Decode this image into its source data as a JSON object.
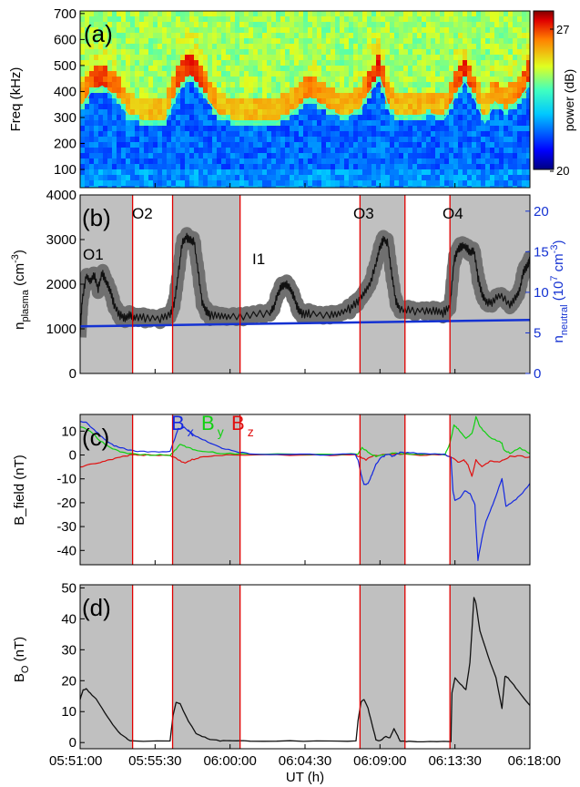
{
  "colors": {
    "shade": "#c0c0c0",
    "event_line": "#e00000",
    "bx": "#1428e0",
    "by": "#10d010",
    "bz": "#e01010",
    "density": "#111111",
    "density_band": "#707070",
    "neutral": "#1432d2",
    "right_axis": "#1432d2"
  },
  "shaded_intervals_h": [
    [
      5.85,
      5.9025
    ],
    [
      5.9425,
      6.01
    ],
    [
      6.13,
      6.175
    ],
    [
      6.22,
      6.3
    ]
  ],
  "event_lines_h": [
    5.9025,
    5.9425,
    6.01,
    6.13,
    6.175,
    6.22
  ],
  "chart_data": [
    {
      "panel": "a",
      "type": "heatmap",
      "panel_label": "(a)",
      "ylabel": "Freq (kHz)",
      "xlim_h": [
        5.85,
        6.3
      ],
      "ylim": [
        30,
        710
      ],
      "yticks": [
        "100",
        "200",
        "300",
        "400",
        "500",
        "600",
        "700"
      ],
      "colorbar": {
        "label": "power (dB)",
        "min_label": "20",
        "max_label": "27",
        "range": [
          20,
          27
        ]
      },
      "plasma_line_khz": {
        "x": [
          5.85,
          5.86,
          5.872,
          5.885,
          5.9,
          5.915,
          5.935,
          5.948,
          5.96,
          5.975,
          5.99,
          6.005,
          6.025,
          6.045,
          6.06,
          6.08,
          6.1,
          6.115,
          6.13,
          6.14,
          6.15,
          6.16,
          6.17,
          6.185,
          6.2,
          6.215,
          6.225,
          6.235,
          6.245,
          6.255,
          6.265,
          6.275,
          6.29,
          6.3
        ],
        "y": [
          330,
          395,
          420,
          380,
          300,
          285,
          282,
          400,
          460,
          380,
          300,
          285,
          282,
          280,
          310,
          375,
          325,
          300,
          330,
          400,
          450,
          320,
          300,
          305,
          315,
          300,
          380,
          440,
          370,
          280,
          360,
          320,
          370,
          430
        ]
      }
    },
    {
      "panel": "b",
      "type": "line",
      "panel_label": "(b)",
      "ylabel": "n_plasma (cm^-3)",
      "ylabel_main": "n",
      "ylabel_sub": "plasma",
      "ylabel_tail": " (cm",
      "ylabel_sup": "-3",
      "ylabel_close": ")",
      "ylim": [
        0,
        4000
      ],
      "yticks": [
        "0",
        "1000",
        "2000",
        "3000",
        "4000"
      ],
      "right_ylabel": "n_neutral (10^7 cm^-3)",
      "right_ylabel_main": "n",
      "right_ylabel_sub": "neutral",
      "right_ylabel_tail": " (10",
      "right_ylabel_sup1": "7",
      "right_ylabel_mid": " cm",
      "right_ylabel_sup2": "-3",
      "right_ylabel_close": ")",
      "right_ylim": [
        0,
        22
      ],
      "right_yticks": [
        "0",
        "5",
        "10",
        "15",
        "20"
      ],
      "annotations": [
        "O1",
        "O2",
        "I1",
        "O3",
        "O4"
      ],
      "series": [
        {
          "name": "n_plasma",
          "x": [
            5.85,
            5.852,
            5.856,
            5.86,
            5.864,
            5.868,
            5.872,
            5.876,
            5.88,
            5.884,
            5.89,
            5.895,
            5.9,
            5.905,
            5.915,
            5.93,
            5.94,
            5.944,
            5.948,
            5.952,
            5.956,
            5.96,
            5.964,
            5.968,
            5.972,
            5.976,
            5.98,
            5.99,
            6.0,
            6.02,
            6.04,
            6.044,
            6.048,
            6.052,
            6.056,
            6.06,
            6.064,
            6.068,
            6.072,
            6.08,
            6.1,
            6.11,
            6.12,
            6.128,
            6.134,
            6.14,
            6.146,
            6.15,
            6.154,
            6.158,
            6.162,
            6.166,
            6.17,
            6.18,
            6.195,
            6.205,
            6.213,
            6.22,
            6.224,
            6.228,
            6.232,
            6.236,
            6.24,
            6.244,
            6.248,
            6.252,
            6.256,
            6.262,
            6.27,
            6.28,
            6.286,
            6.29,
            6.294,
            6.298,
            6.3
          ],
          "y": [
            900,
            1600,
            2200,
            2050,
            2200,
            1900,
            2250,
            2050,
            1850,
            1550,
            1300,
            1250,
            1300,
            1250,
            1250,
            1230,
            1300,
            1550,
            2200,
            2900,
            3050,
            3000,
            2950,
            2300,
            1600,
            1400,
            1300,
            1300,
            1270,
            1300,
            1350,
            1500,
            1800,
            1950,
            2000,
            1900,
            1700,
            1450,
            1350,
            1330,
            1330,
            1350,
            1450,
            1600,
            1800,
            2000,
            2450,
            2850,
            3000,
            2900,
            2200,
            1600,
            1450,
            1400,
            1420,
            1380,
            1360,
            1500,
            2500,
            2800,
            2850,
            2850,
            2700,
            2750,
            2150,
            1800,
            1600,
            1600,
            1750,
            1550,
            1700,
            1900,
            2300,
            2450,
            2550
          ]
        },
        {
          "name": "n_neutral",
          "axis": "right",
          "x": [
            5.85,
            6.3
          ],
          "y": [
            5.8,
            6.6
          ]
        }
      ]
    },
    {
      "panel": "c",
      "type": "line",
      "panel_label": "(c)",
      "ylabel": "B_field (nT)",
      "ylim": [
        -46,
        17
      ],
      "yticks": [
        "-40",
        "-30",
        "-20",
        "-10",
        "0",
        "10"
      ],
      "legend": [
        {
          "main": "B",
          "sub": "x"
        },
        {
          "main": "B",
          "sub": "y"
        },
        {
          "main": "B",
          "sub": "z"
        }
      ],
      "series": [
        {
          "name": "Bx",
          "x": [
            5.85,
            5.855,
            5.86,
            5.868,
            5.876,
            5.884,
            5.892,
            5.9,
            5.91,
            5.925,
            5.94,
            5.944,
            5.948,
            5.954,
            5.962,
            5.97,
            5.98,
            5.992,
            6.005,
            6.02,
            6.06,
            6.1,
            6.125,
            6.128,
            6.131,
            6.134,
            6.138,
            6.142,
            6.146,
            6.15,
            6.154,
            6.158,
            6.162,
            6.165,
            6.17,
            6.18,
            6.195,
            6.215,
            6.221,
            6.223,
            6.225,
            6.23,
            6.235,
            6.24,
            6.245,
            6.246,
            6.248,
            6.252,
            6.256,
            6.26,
            6.266,
            6.272,
            6.276,
            6.282,
            6.29,
            6.3
          ],
          "y": [
            14,
            14,
            12,
            9,
            6,
            4,
            3,
            2,
            1.5,
            1.2,
            1.5,
            6,
            11,
            11.5,
            9,
            7,
            5,
            3,
            1.5,
            0.5,
            0.2,
            0.2,
            0.3,
            -2,
            -8,
            -12.5,
            -12,
            -8,
            -4,
            -1.5,
            -0.5,
            0.5,
            -0.5,
            0,
            1,
            1,
            0.5,
            0.2,
            -1,
            -15,
            -19,
            -18,
            -15,
            -16,
            -21,
            -30,
            -44,
            -35,
            -28,
            -24,
            -17,
            -10,
            -21.5,
            -20,
            -17,
            -12
          ]
        },
        {
          "name": "By",
          "x": [
            5.85,
            5.86,
            5.87,
            5.88,
            5.89,
            5.9,
            5.92,
            5.94,
            5.946,
            5.95,
            5.956,
            5.965,
            5.975,
            5.99,
            6.01,
            6.06,
            6.1,
            6.128,
            6.132,
            6.136,
            6.14,
            6.146,
            6.156,
            6.164,
            6.17,
            6.18,
            6.195,
            6.215,
            6.22,
            6.224,
            6.228,
            6.236,
            6.242,
            6.245,
            6.246,
            6.25,
            6.256,
            6.262,
            6.268,
            6.272,
            6.274,
            6.28,
            6.29,
            6.3
          ],
          "y": [
            12,
            10,
            6,
            3,
            1.5,
            0.5,
            0,
            0,
            2.5,
            4.5,
            3.5,
            2,
            1.5,
            0.8,
            0.4,
            0.3,
            0.3,
            0.5,
            3,
            2,
            0.5,
            -0.5,
            0.3,
            1,
            0.5,
            0.3,
            0.2,
            0.2,
            5,
            12.5,
            11,
            7,
            9,
            14,
            16,
            12,
            9,
            7,
            6,
            5,
            2,
            0.8,
            3,
            0.5
          ]
        },
        {
          "name": "Bz",
          "x": [
            5.85,
            5.86,
            5.87,
            5.88,
            5.89,
            5.9,
            5.91,
            5.925,
            5.94,
            5.948,
            5.955,
            5.962,
            5.97,
            5.985,
            6.0,
            6.06,
            6.1,
            6.126,
            6.131,
            6.136,
            6.142,
            6.15,
            6.16,
            6.17,
            6.19,
            6.215,
            6.222,
            6.228,
            6.234,
            6.238,
            6.242,
            6.246,
            6.252,
            6.26,
            6.268,
            6.274,
            6.28,
            6.29,
            6.3
          ],
          "y": [
            -5,
            -4,
            -3,
            -2,
            -1,
            0,
            0,
            0,
            0,
            -2,
            -3.5,
            -2,
            -1,
            -0.5,
            0,
            0,
            0,
            0,
            -1,
            -2,
            -0.5,
            0,
            0.5,
            0.3,
            0,
            0,
            -1,
            -3,
            -2,
            -4,
            -9,
            -2,
            -5,
            -2.5,
            -3,
            -2,
            -0.5,
            -0.5,
            -1
          ]
        }
      ]
    },
    {
      "panel": "d",
      "type": "line",
      "panel_label": "(d)",
      "ylabel": "B_O (nT)",
      "ylabel_main": "B",
      "ylabel_sub": "O",
      "ylabel_tail": " (nT)",
      "ylim": [
        -2,
        51
      ],
      "yticks": [
        "0",
        "10",
        "20",
        "30",
        "40",
        "50"
      ],
      "xlabel": "UT (h)",
      "xticks_h": [
        5.85,
        5.925,
        6.0,
        6.075,
        6.15,
        6.225,
        6.3
      ],
      "xticks": [
        "05:51:00",
        "05:55:30",
        "06:00:00",
        "06:04:30",
        "06:09:00",
        "06:13:30",
        "06:18:00"
      ],
      "series": [
        {
          "name": "B_O",
          "x": [
            5.85,
            5.853,
            5.856,
            5.86,
            5.866,
            5.872,
            5.88,
            5.888,
            5.896,
            5.9,
            5.94,
            5.943,
            5.946,
            5.95,
            5.955,
            5.96,
            5.966,
            5.972,
            5.98,
            5.99,
            6.0,
            6.02,
            6.06,
            6.1,
            6.126,
            6.128,
            6.131,
            6.134,
            6.138,
            6.142,
            6.146,
            6.15,
            6.156,
            6.16,
            6.164,
            6.168,
            6.17,
            6.175,
            6.18,
            6.2,
            6.221,
            6.222,
            6.225,
            6.23,
            6.236,
            6.24,
            6.244,
            6.246,
            6.25,
            6.258,
            6.266,
            6.272,
            6.275,
            6.278,
            6.284,
            6.29,
            6.3
          ],
          "y": [
            14,
            17,
            17.5,
            16,
            14,
            11,
            7,
            3.5,
            1.5,
            0.5,
            0.5,
            9,
            13,
            12.5,
            9,
            6,
            3,
            2,
            1,
            0.5,
            0.5,
            0.5,
            0.5,
            0.5,
            0.5,
            7,
            13,
            14,
            11,
            6,
            1,
            0.5,
            2,
            1.5,
            4.5,
            2,
            0.5,
            0.3,
            0.3,
            0.3,
            0.3,
            16,
            21,
            19,
            17,
            26,
            47,
            45,
            36,
            28,
            21,
            11,
            21.5,
            21,
            18.5,
            16,
            12
          ]
        }
      ]
    }
  ]
}
